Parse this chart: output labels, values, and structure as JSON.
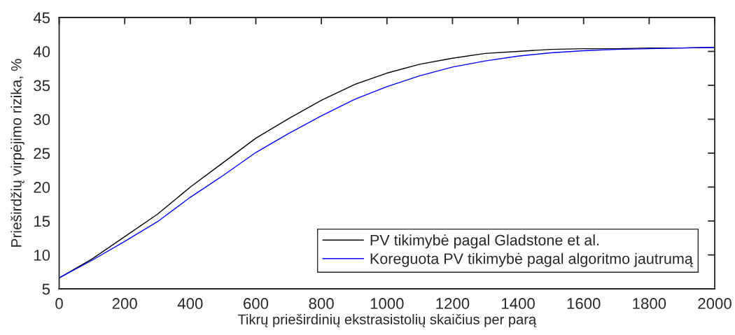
{
  "chart_data": {
    "type": "line",
    "xlabel": "Tikrų prieširdinių ekstrasistolių skaičius per parą",
    "ylabel": "Prieširdžių virpėjimo rizika, %",
    "x": [
      0,
      100,
      200,
      300,
      400,
      500,
      600,
      700,
      800,
      900,
      1000,
      1100,
      1200,
      1300,
      1400,
      1500,
      1600,
      1700,
      1800,
      1900,
      2000
    ],
    "series": [
      {
        "name": "PV tikimybė pagal Gladstone et al.",
        "color": "#000000",
        "values": [
          6.6,
          9.4,
          12.7,
          16.0,
          20.0,
          23.6,
          27.2,
          30.1,
          32.8,
          35.1,
          36.8,
          38.1,
          39.0,
          39.7,
          40.0,
          40.3,
          40.4,
          40.4,
          40.5,
          40.5,
          40.6
        ]
      },
      {
        "name": "Koreguota PV tikimybė pagal algoritmo jautrumą",
        "color": "#0000ff",
        "values": [
          6.6,
          9.2,
          12.0,
          14.9,
          18.5,
          21.7,
          25.1,
          27.9,
          30.5,
          32.9,
          34.8,
          36.4,
          37.7,
          38.6,
          39.3,
          39.8,
          40.1,
          40.3,
          40.4,
          40.5,
          40.6
        ]
      }
    ],
    "xlim": [
      0,
      2000
    ],
    "xticks": [
      0,
      200,
      400,
      600,
      800,
      1000,
      1200,
      1400,
      1600,
      1800,
      2000
    ],
    "ylim": [
      5,
      45
    ],
    "yticks": [
      5,
      10,
      15,
      20,
      25,
      30,
      35,
      40,
      45
    ],
    "grid": false,
    "legend": "bottom right",
    "marker": "none",
    "line_style": "solid"
  }
}
